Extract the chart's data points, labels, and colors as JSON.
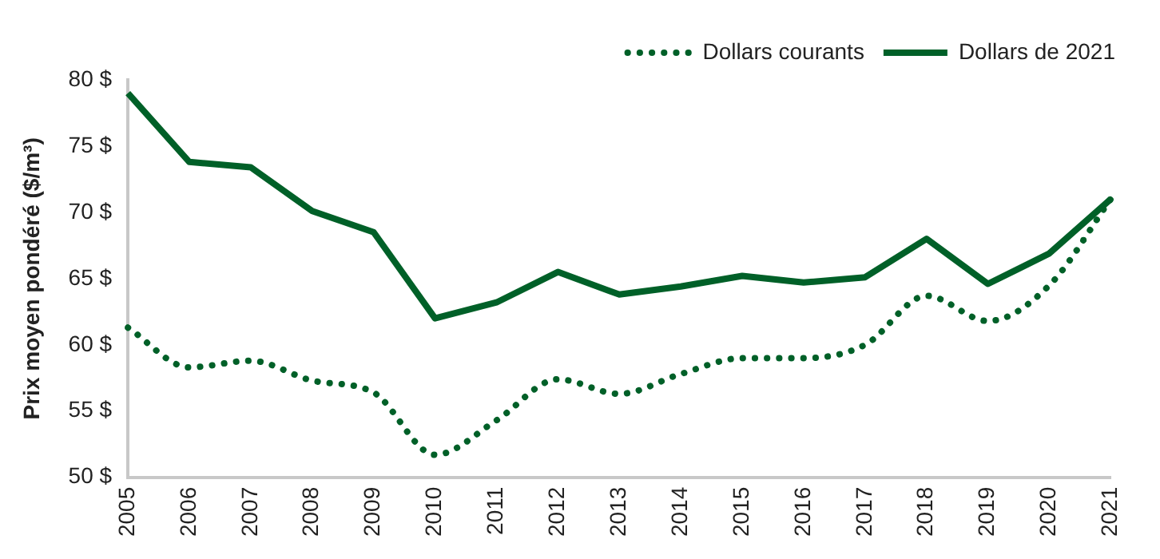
{
  "chart_data": {
    "type": "line",
    "ylabel": "Prix moyen pondéré ($/m³)",
    "categories": [
      "2005",
      "2006",
      "2007",
      "2008",
      "2009",
      "2010",
      "2011",
      "2012",
      "2013",
      "2014",
      "2015",
      "2016",
      "2017",
      "2018",
      "2019",
      "2020",
      "2021"
    ],
    "series": [
      {
        "name": "Dollars courants",
        "color": "#006028",
        "line_style": "dotted",
        "values": [
          61.3,
          58.3,
          58.8,
          57.3,
          56.4,
          51.7,
          54.3,
          57.4,
          56.3,
          57.8,
          59.0,
          59.0,
          60.0,
          63.7,
          61.8,
          64.5,
          71.0
        ]
      },
      {
        "name": "Dollars de 2021",
        "color": "#006028",
        "line_style": "solid",
        "values": [
          79.0,
          73.8,
          73.4,
          70.1,
          68.5,
          62.0,
          63.2,
          65.5,
          63.8,
          64.4,
          65.2,
          64.7,
          65.1,
          68.0,
          64.6,
          66.9,
          71.0
        ]
      }
    ],
    "ylim": [
      50,
      80
    ],
    "yticks": [
      {
        "value": 50,
        "label": "50 $"
      },
      {
        "value": 55,
        "label": "55 $"
      },
      {
        "value": 60,
        "label": "60 $"
      },
      {
        "value": 65,
        "label": "65 $"
      },
      {
        "value": 70,
        "label": "70 $"
      },
      {
        "value": 75,
        "label": "75 $"
      },
      {
        "value": 80,
        "label": "80 $"
      }
    ],
    "grid": false,
    "legend": "top right",
    "marker": "none"
  }
}
